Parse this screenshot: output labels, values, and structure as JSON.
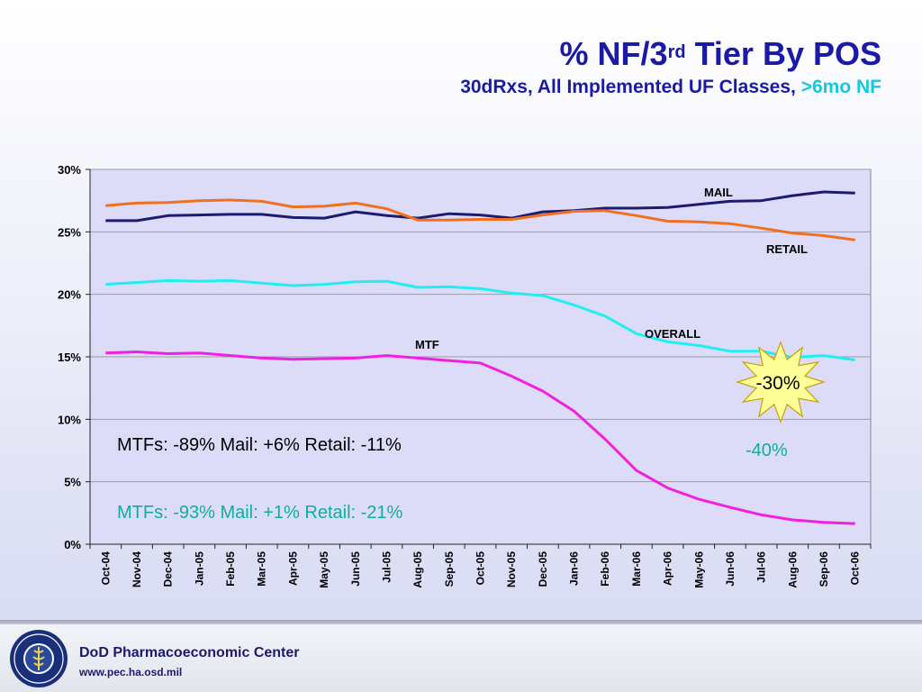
{
  "slide": {
    "title_prefix": "% NF/3",
    "title_sup": "rd",
    "title_suffix": " Tier By POS",
    "subtitle_main": "30dRxs, All Implemented UF Classes, ",
    "subtitle_highlight": ">6mo NF"
  },
  "footer": {
    "org_name": "DoD Pharmacoeconomic Center",
    "url": "www.pec.ha.osd.mil"
  },
  "colors": {
    "title": "#1a1aa6",
    "highlight": "#17c7e0",
    "mail": "#1b1b72",
    "retail": "#f07020",
    "overall": "#22eef2",
    "mtf": "#f020e0",
    "starburst": "#ffff99"
  },
  "chart_data": {
    "type": "line",
    "categories": [
      "Oct-04",
      "Nov-04",
      "Dec-04",
      "Jan-05",
      "Feb-05",
      "Mar-05",
      "Apr-05",
      "May-05",
      "Jun-05",
      "Jul-05",
      "Aug-05",
      "Sep-05",
      "Oct-05",
      "Nov-05",
      "Dec-05",
      "Jan-06",
      "Feb-06",
      "Mar-06",
      "Apr-06",
      "May-06",
      "Jun-06",
      "Jul-06",
      "Aug-06",
      "Sep-06",
      "Oct-06"
    ],
    "ylim": [
      0,
      0.3
    ],
    "yticks": [
      0,
      0.05,
      0.1,
      0.15,
      0.2,
      0.25,
      0.3
    ],
    "ytick_labels": [
      "0%",
      "5%",
      "10%",
      "15%",
      "20%",
      "25%",
      "30%"
    ],
    "grid": true,
    "series": [
      {
        "name": "MAIL",
        "values": [
          0.259,
          0.259,
          0.263,
          0.2635,
          0.264,
          0.264,
          0.2615,
          0.261,
          0.266,
          0.263,
          0.261,
          0.2645,
          0.2635,
          0.261,
          0.266,
          0.267,
          0.269,
          0.269,
          0.2695,
          0.272,
          0.2745,
          0.275,
          0.279,
          0.282,
          0.281
        ]
      },
      {
        "name": "RETAIL",
        "values": [
          0.271,
          0.273,
          0.2735,
          0.275,
          0.2755,
          0.2745,
          0.27,
          0.2705,
          0.273,
          0.2685,
          0.2595,
          0.2595,
          0.26,
          0.26,
          0.2635,
          0.2665,
          0.267,
          0.263,
          0.2585,
          0.258,
          0.2565,
          0.253,
          0.249,
          0.247,
          0.2435
        ]
      },
      {
        "name": "OVERALL",
        "values": [
          0.208,
          0.2095,
          0.211,
          0.2105,
          0.211,
          0.209,
          0.207,
          0.208,
          0.21,
          0.2105,
          0.2055,
          0.206,
          0.2045,
          0.201,
          0.199,
          0.1915,
          0.1825,
          0.1685,
          0.162,
          0.159,
          0.1545,
          0.1545,
          0.1495,
          0.151,
          0.1475
        ]
      },
      {
        "name": "MTF",
        "values": [
          0.153,
          0.154,
          0.1525,
          0.153,
          0.151,
          0.149,
          0.148,
          0.1485,
          0.149,
          0.151,
          0.149,
          0.147,
          0.145,
          0.1345,
          0.1225,
          0.1065,
          0.084,
          0.059,
          0.045,
          0.036,
          0.0295,
          0.0235,
          0.0195,
          0.0175,
          0.0165
        ]
      }
    ],
    "annotations": {
      "mail_label": "MAIL",
      "retail_label": "RETAIL",
      "overall_label": "OVERALL",
      "mtf_label": "MTF",
      "note1": "MTFs: -89%  Mail: +6%  Retail: -11%",
      "note2": "MTFs: -93%  Mail: +1%  Retail: -21%",
      "starburst_text": "-30%",
      "change_text": "-40%"
    }
  }
}
